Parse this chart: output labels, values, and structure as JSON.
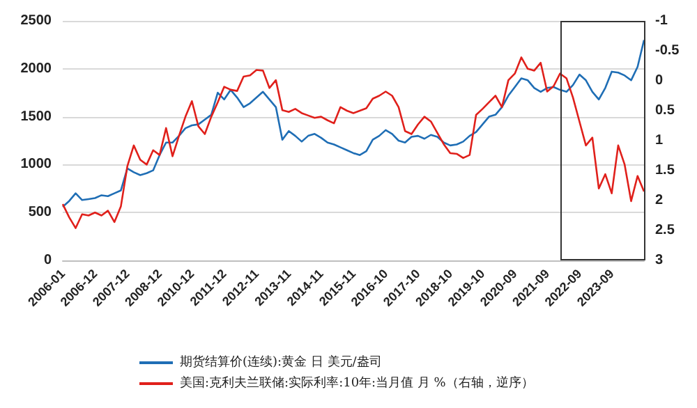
{
  "chart_data": {
    "type": "line",
    "categories": [
      "2006-01",
      null,
      null,
      null,
      null,
      "2006-12",
      null,
      null,
      null,
      null,
      "2007-12",
      null,
      null,
      null,
      null,
      "2008-12",
      null,
      null,
      null,
      null,
      "2010-12",
      null,
      null,
      null,
      null,
      "2011-12",
      null,
      null,
      null,
      null,
      "2012-11",
      null,
      null,
      null,
      null,
      "2013-11",
      null,
      null,
      null,
      null,
      "2014-11",
      null,
      null,
      null,
      null,
      "2015-11",
      null,
      null,
      null,
      null,
      "2016-10",
      null,
      null,
      null,
      null,
      "2017-10",
      null,
      null,
      null,
      null,
      "2018-10",
      null,
      null,
      null,
      null,
      "2019-10",
      null,
      null,
      null,
      null,
      "2020-09",
      null,
      null,
      null,
      null,
      "2021-09",
      null,
      null,
      null,
      null,
      "2022-09",
      null,
      null,
      null,
      null,
      "2023-09",
      null,
      null,
      null,
      null,
      null
    ],
    "series": [
      {
        "name": "期货结算价(连续):黄金 日 美元/盎司",
        "color": "#1f6eb5",
        "values": [
          560,
          620,
          700,
          630,
          640,
          650,
          680,
          670,
          700,
          730,
          960,
          920,
          890,
          910,
          940,
          1100,
          1230,
          1230,
          1300,
          1380,
          1410,
          1420,
          1470,
          1520,
          1750,
          1680,
          1780,
          1700,
          1600,
          1640,
          1700,
          1760,
          1680,
          1600,
          1260,
          1350,
          1300,
          1240,
          1300,
          1320,
          1280,
          1230,
          1210,
          1180,
          1150,
          1120,
          1100,
          1140,
          1260,
          1300,
          1360,
          1320,
          1250,
          1230,
          1290,
          1300,
          1270,
          1310,
          1290,
          1230,
          1200,
          1210,
          1240,
          1300,
          1340,
          1420,
          1500,
          1520,
          1600,
          1720,
          1810,
          1900,
          1880,
          1800,
          1760,
          1800,
          1810,
          1780,
          1760,
          1830,
          1940,
          1880,
          1760,
          1680,
          1800,
          1970,
          1960,
          1930,
          1880,
          2020,
          2300
        ]
      },
      {
        "name": "美国:克利夫兰联储:实际利率:10年:当月值 月 %（右轴，逆序）",
        "color": "#e0201b",
        "axis": "y2",
        "values": [
          2.06,
          2.28,
          2.46,
          2.23,
          2.25,
          2.2,
          2.25,
          2.17,
          2.36,
          2.1,
          1.43,
          1.08,
          1.32,
          1.4,
          1.16,
          1.24,
          0.79,
          1.26,
          0.92,
          0.6,
          0.34,
          0.76,
          0.89,
          0.6,
          0.36,
          0.1,
          0.15,
          0.17,
          -0.07,
          -0.09,
          -0.18,
          -0.17,
          0.12,
          -0.01,
          0.49,
          0.52,
          0.47,
          0.54,
          0.58,
          0.62,
          0.6,
          0.66,
          0.71,
          0.44,
          0.5,
          0.54,
          0.5,
          0.46,
          0.3,
          0.25,
          0.18,
          0.25,
          0.44,
          0.84,
          0.89,
          0.73,
          0.6,
          0.68,
          0.87,
          1.06,
          1.21,
          1.22,
          1.29,
          1.24,
          0.57,
          0.47,
          0.36,
          0.25,
          0.44,
          -0.01,
          -0.12,
          -0.39,
          -0.2,
          -0.17,
          -0.3,
          0.18,
          0.09,
          -0.12,
          -0.04,
          0.28,
          0.68,
          1.08,
          0.95,
          1.8,
          1.56,
          1.88,
          1.08,
          1.4,
          2.01,
          1.59,
          1.85
        ]
      }
    ],
    "ylim": [
      0,
      2500
    ],
    "yticks": [
      0,
      500,
      1000,
      1500,
      2000,
      2500
    ],
    "y2lim": [
      3,
      -1
    ],
    "y2ticks": [
      3,
      2.5,
      2,
      1.5,
      1,
      0.5,
      0,
      -0.5,
      -1
    ],
    "grid": "y",
    "legend": "bottom",
    "marker": "none",
    "line_style": "solid"
  }
}
